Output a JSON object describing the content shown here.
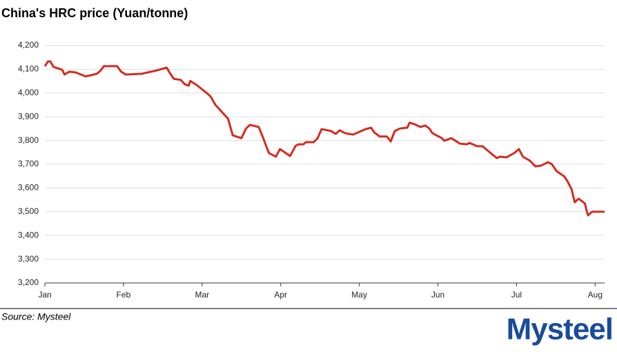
{
  "chart_data": {
    "type": "line",
    "title": "China's HRC price (Yuan/tonne)",
    "source": "Source: Mysteel",
    "logo": "Mysteel",
    "x": [
      0,
      0.04,
      0.07,
      0.11,
      0.22,
      0.25,
      0.31,
      0.39,
      0.52,
      0.66,
      0.71,
      0.75,
      0.85,
      0.92,
      0.97,
      1.03,
      1.23,
      1.42,
      1.55,
      1.59,
      1.64,
      1.73,
      1.78,
      1.83,
      1.85,
      1.93,
      2.06,
      2.11,
      2.17,
      2.33,
      2.39,
      2.5,
      2.56,
      2.61,
      2.72,
      2.77,
      2.82,
      2.85,
      2.94,
      2.99,
      3.12,
      3.19,
      3.23,
      3.29,
      3.32,
      3.42,
      3.47,
      3.52,
      3.64,
      3.7,
      3.75,
      3.82,
      3.92,
      4.08,
      4.15,
      4.19,
      4.26,
      4.35,
      4.4,
      4.45,
      4.52,
      4.61,
      4.64,
      4.7,
      4.78,
      4.84,
      4.89,
      4.93,
      5.05,
      5.08,
      5.17,
      5.28,
      5.37,
      5.4,
      5.5,
      5.57,
      5.62,
      5.75,
      5.79,
      5.87,
      5.97,
      6.03,
      6.08,
      6.17,
      6.24,
      6.31,
      6.4,
      6.45,
      6.51,
      6.61,
      6.65,
      6.7,
      6.74,
      6.79,
      6.87,
      6.89,
      6.91,
      6.96,
      7.12
    ],
    "series": [
      {
        "name": "China's HRC price",
        "color": "#d42a20",
        "values": [
          4113,
          4133,
          4133,
          4110,
          4098,
          4078,
          4090,
          4087,
          4070,
          4081,
          4095,
          4113,
          4113,
          4113,
          4090,
          4078,
          4081,
          4095,
          4107,
          4084,
          4060,
          4055,
          4037,
          4031,
          4051,
          4034,
          4000,
          3985,
          3950,
          3892,
          3822,
          3810,
          3851,
          3866,
          3857,
          3817,
          3773,
          3747,
          3732,
          3764,
          3735,
          3778,
          3784,
          3784,
          3793,
          3793,
          3810,
          3848,
          3840,
          3828,
          3843,
          3831,
          3825,
          3848,
          3854,
          3834,
          3817,
          3817,
          3796,
          3840,
          3851,
          3854,
          3875,
          3869,
          3857,
          3863,
          3851,
          3831,
          3810,
          3799,
          3810,
          3787,
          3784,
          3790,
          3776,
          3776,
          3761,
          3726,
          3732,
          3729,
          3747,
          3764,
          3732,
          3715,
          3691,
          3694,
          3709,
          3700,
          3671,
          3648,
          3627,
          3595,
          3540,
          3555,
          3535,
          3506,
          3485,
          3500,
          3500
        ]
      }
    ],
    "xlim": [
      0,
      7.12
    ],
    "xticks": [
      {
        "value": 0,
        "label": "Jan"
      },
      {
        "value": 1,
        "label": "Feb"
      },
      {
        "value": 2,
        "label": "Mar"
      },
      {
        "value": 3,
        "label": "Apr"
      },
      {
        "value": 4,
        "label": "May"
      },
      {
        "value": 5,
        "label": "Jun"
      },
      {
        "value": 6,
        "label": "Jul"
      },
      {
        "value": 7,
        "label": "Aug"
      }
    ],
    "ylim": [
      3200,
      4200
    ],
    "yticks": [
      {
        "value": 3200,
        "label": "3,200"
      },
      {
        "value": 3300,
        "label": "3,300"
      },
      {
        "value": 3400,
        "label": "3,400"
      },
      {
        "value": 3500,
        "label": "3,500"
      },
      {
        "value": 3600,
        "label": "3,600"
      },
      {
        "value": 3700,
        "label": "3,700"
      },
      {
        "value": 3800,
        "label": "3,800"
      },
      {
        "value": 3900,
        "label": "3,900"
      },
      {
        "value": 4000,
        "label": "4,000"
      },
      {
        "value": 4100,
        "label": "4,100"
      },
      {
        "value": 4200,
        "label": "4,200"
      }
    ],
    "grid": true
  }
}
